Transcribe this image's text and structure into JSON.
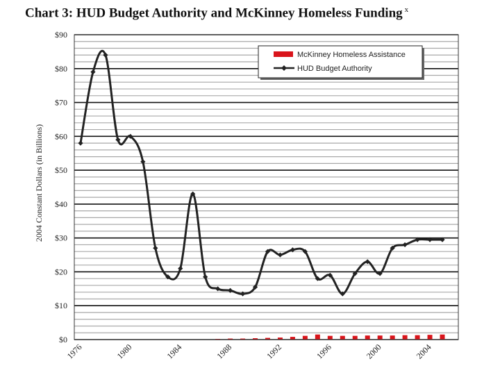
{
  "title": "Chart 3: HUD Budget Authority and McKinney Homeless Funding",
  "title_note": "x",
  "chart_data": {
    "type": "line",
    "title": "Chart 3: HUD Budget Authority and McKinney Homeless Funding",
    "ylabel": "2004 Constant Dollars (in Billions)",
    "xlabel": "",
    "ylim": [
      0,
      90
    ],
    "xlim": [
      1976,
      2005
    ],
    "y_ticks": [
      {
        "value": 0,
        "label": "$0"
      },
      {
        "value": 10,
        "label": "$10"
      },
      {
        "value": 20,
        "label": "$20"
      },
      {
        "value": 30,
        "label": "$30"
      },
      {
        "value": 40,
        "label": "$40"
      },
      {
        "value": 50,
        "label": "$50"
      },
      {
        "value": 60,
        "label": "$60"
      },
      {
        "value": 70,
        "label": "$70"
      },
      {
        "value": 80,
        "label": "$80"
      },
      {
        "value": 90,
        "label": "$90"
      }
    ],
    "x_ticks": [
      {
        "value": 1976,
        "label": "1976"
      },
      {
        "value": 1980,
        "label": "1980"
      },
      {
        "value": 1984,
        "label": "1984"
      },
      {
        "value": 1988,
        "label": "1988"
      },
      {
        "value": 1992,
        "label": "1992"
      },
      {
        "value": 1996,
        "label": "1996"
      },
      {
        "value": 2000,
        "label": "2000"
      },
      {
        "value": 2004,
        "label": "2004"
      }
    ],
    "grid": true,
    "legend_position": "top-right",
    "colors": {
      "bars": "#d9141b",
      "line": "#222222",
      "major_grid": "#111111",
      "minor_grid": "#a8a8a8"
    },
    "series": [
      {
        "name": "McKinney Homeless Assistance",
        "type": "bar",
        "x": [
          1987,
          1988,
          1989,
          1990,
          1991,
          1992,
          1993,
          1994,
          1995,
          1996,
          1997,
          1998,
          1999,
          2000,
          2001,
          2002,
          2003,
          2004,
          2005
        ],
        "values": [
          0.2,
          0.3,
          0.3,
          0.4,
          0.5,
          0.6,
          0.8,
          1.1,
          1.5,
          1.1,
          1.1,
          1.1,
          1.2,
          1.2,
          1.2,
          1.3,
          1.3,
          1.4,
          1.5
        ]
      },
      {
        "name": "HUD Budget Authority",
        "type": "line",
        "x": [
          1976,
          1977,
          1978,
          1979,
          1980,
          1981,
          1982,
          1983,
          1984,
          1985,
          1986,
          1987,
          1988,
          1989,
          1990,
          1991,
          1992,
          1993,
          1994,
          1995,
          1996,
          1997,
          1998,
          1999,
          2000,
          2001,
          2002,
          2003,
          2004,
          2005
        ],
        "values": [
          58,
          79,
          84,
          59,
          60,
          52.5,
          27,
          18.5,
          21,
          43,
          18.5,
          15,
          14.5,
          13.5,
          15.5,
          26,
          25,
          26.5,
          26,
          18,
          19,
          13.5,
          19.5,
          23,
          19.5,
          27,
          28,
          29.5,
          29.5,
          29.5
        ]
      }
    ]
  }
}
